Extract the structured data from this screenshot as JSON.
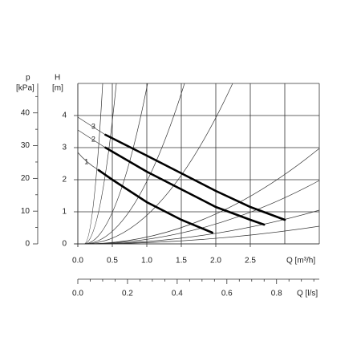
{
  "chart_data": {
    "type": "line",
    "y_label": "H",
    "y_unit": "[m]",
    "y2_label": "p",
    "y2_unit": "[kPa]",
    "x_label": "Q [m³/h]",
    "x2_label": "Q [l/s]",
    "xlim": [
      0,
      3.5
    ],
    "xticks": [
      {
        "value": 0,
        "label": "0.0"
      },
      {
        "value": 0.5,
        "label": "0.5"
      },
      {
        "value": 1,
        "label": "1.0"
      },
      {
        "value": 1.5,
        "label": "1.5"
      },
      {
        "value": 2,
        "label": "2.0"
      },
      {
        "value": 2.5,
        "label": "2.5"
      }
    ],
    "x2lim": [
      0,
      0.972
    ],
    "x2ticks": [
      {
        "value": 0,
        "label": "0.0"
      },
      {
        "value": 0.2,
        "label": "0.2"
      },
      {
        "value": 0.4,
        "label": "0.4"
      },
      {
        "value": 0.6,
        "label": "0.6"
      },
      {
        "value": 0.8,
        "label": "0.8"
      }
    ],
    "ylim": [
      0,
      5
    ],
    "yticks": [
      0,
      1,
      2,
      3,
      4
    ],
    "y2lim": [
      0,
      49
    ],
    "y2ticks": [
      0,
      10,
      20,
      30,
      40
    ],
    "grid": true,
    "series": [
      {
        "name": "1",
        "color": "#000000",
        "x": [
          0.3,
          0.5,
          1.0,
          1.5,
          1.95
        ],
        "values": [
          2.3,
          2.0,
          1.3,
          0.75,
          0.35
        ]
      },
      {
        "name": "2",
        "color": "#000000",
        "x": [
          0.4,
          1.0,
          1.5,
          2.0,
          2.5,
          2.7
        ],
        "values": [
          3.0,
          2.25,
          1.7,
          1.15,
          0.75,
          0.6
        ]
      },
      {
        "name": "3",
        "color": "#000000",
        "x": [
          0.4,
          1.0,
          1.5,
          2.0,
          2.5,
          3.0
        ],
        "values": [
          3.4,
          2.75,
          2.2,
          1.65,
          1.15,
          0.75
        ]
      }
    ]
  }
}
